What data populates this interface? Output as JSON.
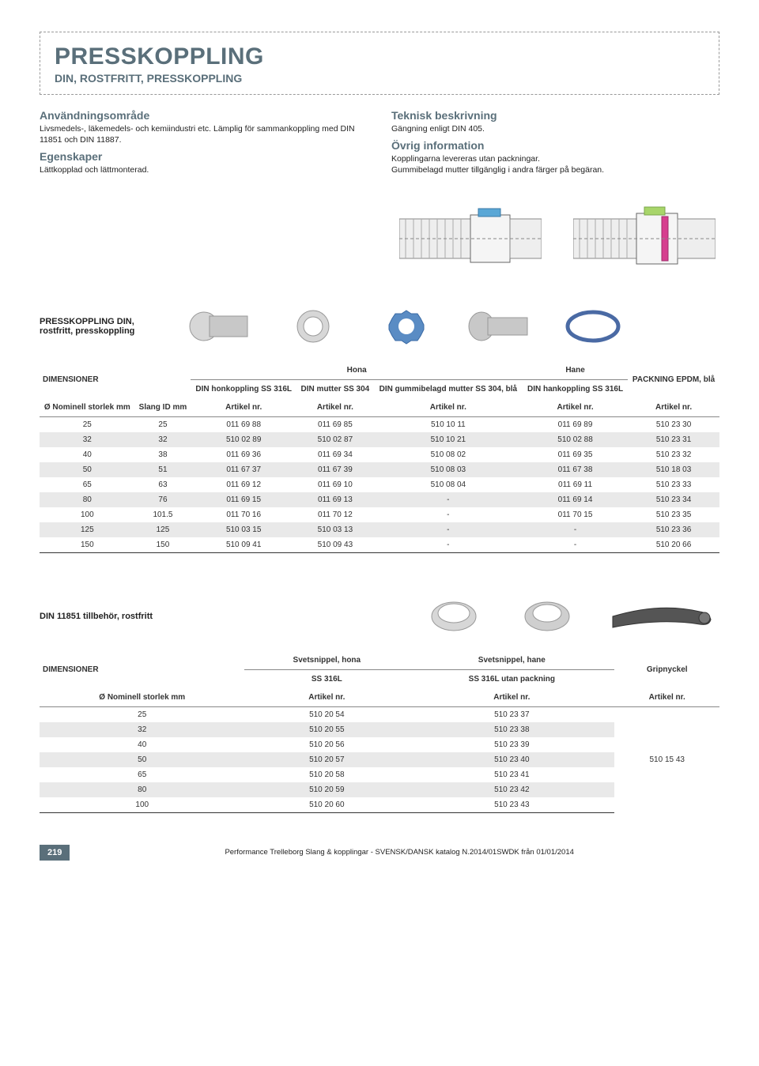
{
  "header": {
    "title": "PRESSKOPPLING",
    "subtitle": "DIN, ROSTFRITT, PRESSKOPPLING"
  },
  "left_col": {
    "s1_h": "Användningsområde",
    "s1_p": "Livsmedels-, läkemedels- och kemiindustri etc. Lämplig för sammankoppling med DIN 11851 och DIN 11887.",
    "s2_h": "Egenskaper",
    "s2_p": "Lättkopplad och lättmonterad."
  },
  "right_col": {
    "s1_h": "Teknisk beskrivning",
    "s1_p": "Gängning enligt DIN 405.",
    "s2_h": "Övrig information",
    "s2_p": "Kopplingarna levereras utan packningar.\nGummibelagd mutter tillgänglig i andra färger på begäran."
  },
  "block1_title": "PRESSKOPPLING DIN, rostfritt, presskoppling",
  "table1": {
    "dim_label": "DIMENSIONER",
    "group_headers": [
      "",
      "Hona",
      "",
      "Hane",
      "PACKNING EPDM, blå"
    ],
    "sub_headers": [
      "DIN honkoppling SS 316L",
      "DIN mutter SS 304",
      "DIN gummibelagd mutter SS 304, blå",
      "DIN hankoppling SS 316L",
      ""
    ],
    "dim_cols": [
      "Ø Nominell storlek mm",
      "Slang ID mm"
    ],
    "artikel_nr": "Artikel nr.",
    "rows": [
      [
        "25",
        "25",
        "011 69 88",
        "011 69 85",
        "510 10 11",
        "011 69 89",
        "510 23 30"
      ],
      [
        "32",
        "32",
        "510 02 89",
        "510 02 87",
        "510 10 21",
        "510 02 88",
        "510 23 31"
      ],
      [
        "40",
        "38",
        "011 69 36",
        "011 69 34",
        "510 08 02",
        "011 69 35",
        "510 23 32"
      ],
      [
        "50",
        "51",
        "011 67 37",
        "011 67 39",
        "510 08 03",
        "011 67 38",
        "510 18 03"
      ],
      [
        "65",
        "63",
        "011 69 12",
        "011 69 10",
        "510 08 04",
        "011 69 11",
        "510 23 33"
      ],
      [
        "80",
        "76",
        "011 69 15",
        "011 69 13",
        "-",
        "011 69 14",
        "510 23 34"
      ],
      [
        "100",
        "101.5",
        "011 70 16",
        "011 70 12",
        "-",
        "011 70 15",
        "510 23 35"
      ],
      [
        "125",
        "125",
        "510 03 15",
        "510 03 13",
        "-",
        "-",
        "510 23 36"
      ],
      [
        "150",
        "150",
        "510 09 41",
        "510 09 43",
        "-",
        "-",
        "510 20 66"
      ]
    ]
  },
  "block2_title": "DIN 11851 tillbehör, rostfritt",
  "table2": {
    "dim_label": "DIMENSIONER",
    "group_headers": [
      "Svetsnippel, hona",
      "Svetsnippel, hane",
      "Gripnyckel"
    ],
    "sub_headers": [
      "SS 316L",
      "SS 316L utan packning",
      ""
    ],
    "dim_col": "Ø Nominell storlek mm",
    "artikel_nr": "Artikel nr.",
    "rows": [
      [
        "25",
        "510 20 54",
        "510 23 37",
        ""
      ],
      [
        "32",
        "510 20 55",
        "510 23 38",
        ""
      ],
      [
        "40",
        "510 20 56",
        "510 23 39",
        ""
      ],
      [
        "50",
        "510 20 57",
        "510 23 40",
        "510 15 43"
      ],
      [
        "65",
        "510 20 58",
        "510 23 41",
        ""
      ],
      [
        "80",
        "510 20 59",
        "510 23 42",
        ""
      ],
      [
        "100",
        "510 20 60",
        "510 23 43",
        ""
      ]
    ]
  },
  "footer": {
    "page": "219",
    "text": "Performance Trelleborg Slang & kopplingar - SVENSK/DANSK katalog N.2014/01SWDK från 01/01/2014"
  },
  "colors": {
    "brand": "#5a6f7a",
    "stripe": "#e9e9e9",
    "accent_blue": "#5aa7d6",
    "accent_green": "#a8d56a",
    "accent_pink": "#d63e8f"
  }
}
